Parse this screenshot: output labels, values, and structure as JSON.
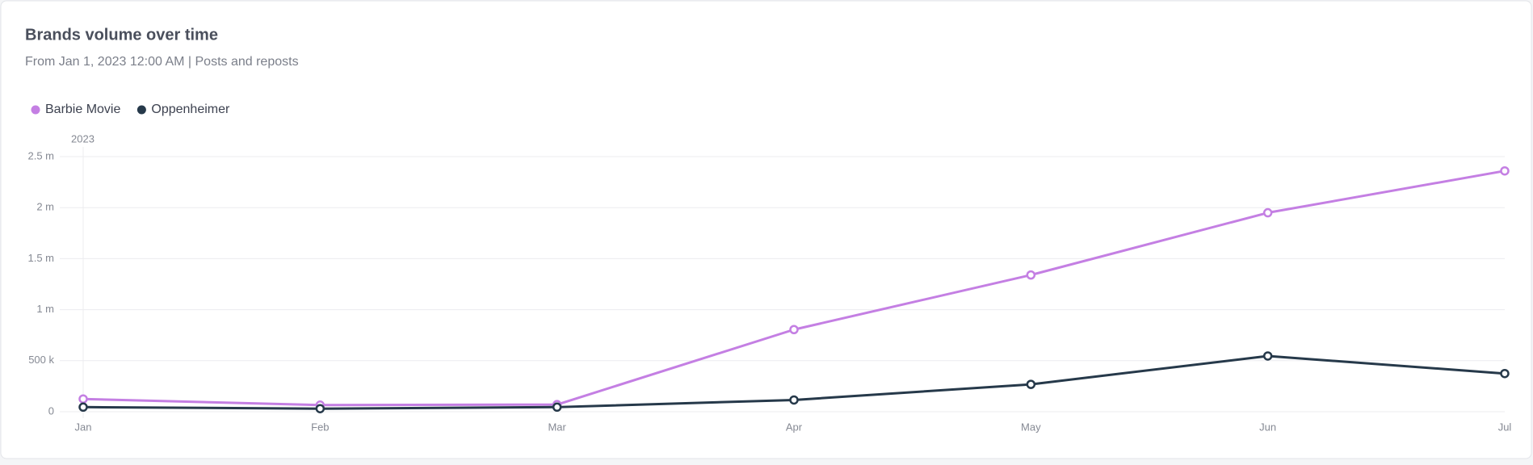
{
  "chart_data": {
    "type": "line",
    "title": "Brands volume over time",
    "subtitle": "From Jan 1, 2023 12:00 AM  |  Posts and reposts",
    "x_group_label": "2023",
    "categories": [
      "Jan",
      "Feb",
      "Mar",
      "Apr",
      "May",
      "Jun",
      "Jul"
    ],
    "series": [
      {
        "name": "Barbie Movie",
        "color": "#c47fe3",
        "values": [
          125000,
          65000,
          70000,
          805000,
          1340000,
          1950000,
          2360000
        ]
      },
      {
        "name": "Oppenheimer",
        "color": "#26394a",
        "values": [
          45000,
          30000,
          45000,
          115000,
          268000,
          546000,
          374000
        ]
      }
    ],
    "ylim": [
      0,
      2500000
    ],
    "yticks": [
      0,
      {
        "value": 500000,
        "label": "500 k"
      },
      {
        "value": 1000000,
        "label": "1 m"
      },
      {
        "value": 1500000,
        "label": "1.5 m"
      },
      {
        "value": 2000000,
        "label": "2 m"
      },
      {
        "value": 2500000,
        "label": "2.5 m"
      }
    ],
    "grid": true,
    "legend": "top-left"
  }
}
